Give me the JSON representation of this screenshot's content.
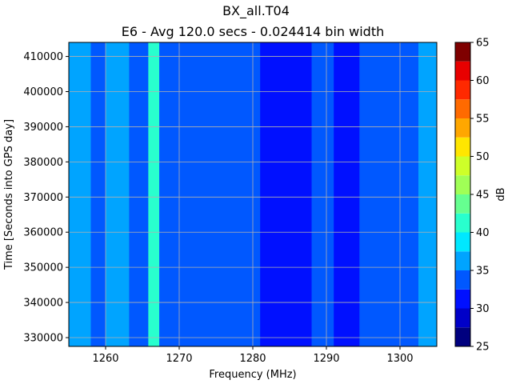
{
  "chart_data": {
    "type": "heatmap",
    "title": "BX_all.T04",
    "subtitle": "E6 - Avg 120.0 secs - 0.024414 bin width",
    "xlabel": "Frequency (MHz)",
    "ylabel": "Time [Seconds into GPS day]",
    "colorbar_label": "dB",
    "xlim": [
      1255,
      1305
    ],
    "ylim": [
      327500,
      414000
    ],
    "x_ticks": [
      1260,
      1270,
      1280,
      1290,
      1300
    ],
    "x_tick_labels": [
      "1260",
      "1270",
      "1280",
      "1290",
      "1300"
    ],
    "y_ticks": [
      330000,
      340000,
      350000,
      360000,
      370000,
      380000,
      390000,
      400000,
      410000
    ],
    "y_tick_labels": [
      "330000",
      "340000",
      "350000",
      "360000",
      "370000",
      "380000",
      "390000",
      "400000",
      "410000"
    ],
    "colorbar_ticks": [
      25,
      30,
      35,
      40,
      45,
      50,
      55,
      60,
      65
    ],
    "colorbar_tick_labels": [
      "25",
      "30",
      "35",
      "40",
      "45",
      "50",
      "55",
      "60",
      "65"
    ],
    "color_levels": [
      {
        "from": 25,
        "to": 27.5,
        "color": "#00007f"
      },
      {
        "from": 27.5,
        "to": 30,
        "color": "#0000c8"
      },
      {
        "from": 30,
        "to": 32.5,
        "color": "#0010ff"
      },
      {
        "from": 32.5,
        "to": 35,
        "color": "#0058ff"
      },
      {
        "from": 35,
        "to": 37.5,
        "color": "#00a4ff"
      },
      {
        "from": 37.5,
        "to": 40,
        "color": "#00e8ff"
      },
      {
        "from": 40,
        "to": 42.5,
        "color": "#29ffce"
      },
      {
        "from": 42.5,
        "to": 45,
        "color": "#66ff90"
      },
      {
        "from": 45,
        "to": 47.5,
        "color": "#a0ff56"
      },
      {
        "from": 47.5,
        "to": 50,
        "color": "#ceff29"
      },
      {
        "from": 50,
        "to": 52.5,
        "color": "#ffe600"
      },
      {
        "from": 52.5,
        "to": 55,
        "color": "#ffa700"
      },
      {
        "from": 55,
        "to": 57.5,
        "color": "#ff6a00"
      },
      {
        "from": 57.5,
        "to": 60,
        "color": "#ff2900"
      },
      {
        "from": 60,
        "to": 62.5,
        "color": "#e80000"
      },
      {
        "from": 62.5,
        "to": 65,
        "color": "#7f0000"
      }
    ],
    "grid": true,
    "spectral_bands": [
      {
        "from": 1255.0,
        "to": 1258.0,
        "level_db": 36
      },
      {
        "from": 1258.0,
        "to": 1260.0,
        "level_db": 33.5
      },
      {
        "from": 1260.0,
        "to": 1263.2,
        "level_db": 37
      },
      {
        "from": 1263.2,
        "to": 1265.8,
        "level_db": 33.5
      },
      {
        "from": 1265.8,
        "to": 1267.3,
        "level_db": 41
      },
      {
        "from": 1267.3,
        "to": 1271.0,
        "level_db": 33.5
      },
      {
        "from": 1271.0,
        "to": 1281.0,
        "level_db": 33.5
      },
      {
        "from": 1281.0,
        "to": 1288.0,
        "level_db": 31
      },
      {
        "from": 1288.0,
        "to": 1291.0,
        "level_db": 33.5
      },
      {
        "from": 1291.0,
        "to": 1294.5,
        "level_db": 32
      },
      {
        "from": 1294.5,
        "to": 1301.0,
        "level_db": 33.5
      },
      {
        "from": 1301.0,
        "to": 1302.5,
        "level_db": 33.5
      },
      {
        "from": 1302.5,
        "to": 1305.0,
        "level_db": 36
      }
    ]
  }
}
